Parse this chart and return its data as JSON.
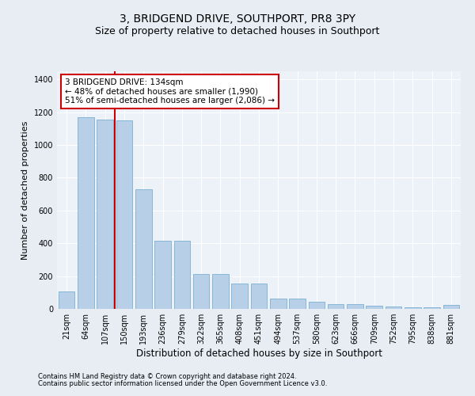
{
  "title": "3, BRIDGEND DRIVE, SOUTHPORT, PR8 3PY",
  "subtitle": "Size of property relative to detached houses in Southport",
  "xlabel": "Distribution of detached houses by size in Southport",
  "ylabel": "Number of detached properties",
  "footer1": "Contains HM Land Registry data © Crown copyright and database right 2024.",
  "footer2": "Contains public sector information licensed under the Open Government Licence v3.0.",
  "categories": [
    "21sqm",
    "64sqm",
    "107sqm",
    "150sqm",
    "193sqm",
    "236sqm",
    "279sqm",
    "322sqm",
    "365sqm",
    "408sqm",
    "451sqm",
    "494sqm",
    "537sqm",
    "580sqm",
    "623sqm",
    "666sqm",
    "709sqm",
    "752sqm",
    "795sqm",
    "838sqm",
    "881sqm"
  ],
  "values": [
    105,
    1170,
    1155,
    1150,
    730,
    415,
    415,
    215,
    215,
    155,
    155,
    65,
    65,
    45,
    30,
    30,
    18,
    14,
    12,
    12,
    25
  ],
  "bar_color": "#b8cfe8",
  "bar_edge_color": "#7aafd4",
  "vline_color": "#cc0000",
  "vline_x_index": 2.5,
  "annotation_text": "3 BRIDGEND DRIVE: 134sqm\n← 48% of detached houses are smaller (1,990)\n51% of semi-detached houses are larger (2,086) →",
  "annotation_box_color": "#ffffff",
  "annotation_box_edge": "#cc0000",
  "ylim": [
    0,
    1450
  ],
  "yticks": [
    0,
    200,
    400,
    600,
    800,
    1000,
    1200,
    1400
  ],
  "background_color": "#e8edf4",
  "plot_bg_color": "#edf2f8",
  "grid_color": "#ffffff",
  "title_fontsize": 10,
  "subtitle_fontsize": 9,
  "tick_fontsize": 7,
  "ylabel_fontsize": 8,
  "xlabel_fontsize": 8.5,
  "footer_fontsize": 6,
  "annotation_fontsize": 7.5
}
